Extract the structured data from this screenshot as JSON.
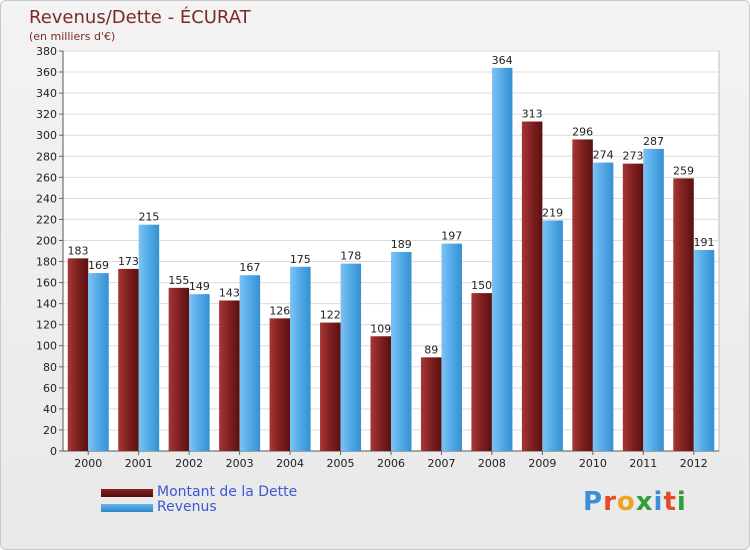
{
  "header": {
    "title": "Revenus/Dette - ÉCURAT",
    "subtitle": "(en milliers d'€)"
  },
  "colors": {
    "debt_top": "#8a2323",
    "debt_bottom": "#4d0a0a",
    "revenue_top": "#66b6f0",
    "revenue_bottom": "#2c87c8",
    "title": "#7a2a2a",
    "legend_text": "#3d57d6"
  },
  "chart_data": {
    "type": "bar",
    "title": "Revenus/Dette - ÉCURAT",
    "subtitle": "(en milliers d'€)",
    "categories": [
      "2000",
      "2001",
      "2002",
      "2003",
      "2004",
      "2005",
      "2006",
      "2007",
      "2008",
      "2009",
      "2010",
      "2011",
      "2012"
    ],
    "series": [
      {
        "name": "Montant de la Dette",
        "values": [
          183,
          173,
          155,
          143,
          126,
          122,
          109,
          89,
          150,
          313,
          296,
          273,
          259
        ]
      },
      {
        "name": "Revenus",
        "values": [
          169,
          215,
          149,
          167,
          175,
          178,
          189,
          197,
          364,
          219,
          274,
          287,
          191
        ]
      }
    ],
    "yticks": [
      0,
      20,
      40,
      60,
      80,
      100,
      120,
      140,
      160,
      180,
      200,
      220,
      240,
      260,
      280,
      300,
      320,
      340,
      360,
      380
    ],
    "ylim": [
      0,
      380
    ],
    "grid": true,
    "legend": "bottom-left"
  },
  "legend": {
    "items": [
      {
        "label": "Montant de la Dette"
      },
      {
        "label": "Revenus"
      }
    ]
  },
  "logo": {
    "text": "Proxiti",
    "letter_colors": [
      "#3b8fd9",
      "#e24a2b",
      "#f0a21c",
      "#2e9f3b",
      "#3b8fd9",
      "#e24a2b",
      "#2e9f3b"
    ]
  }
}
